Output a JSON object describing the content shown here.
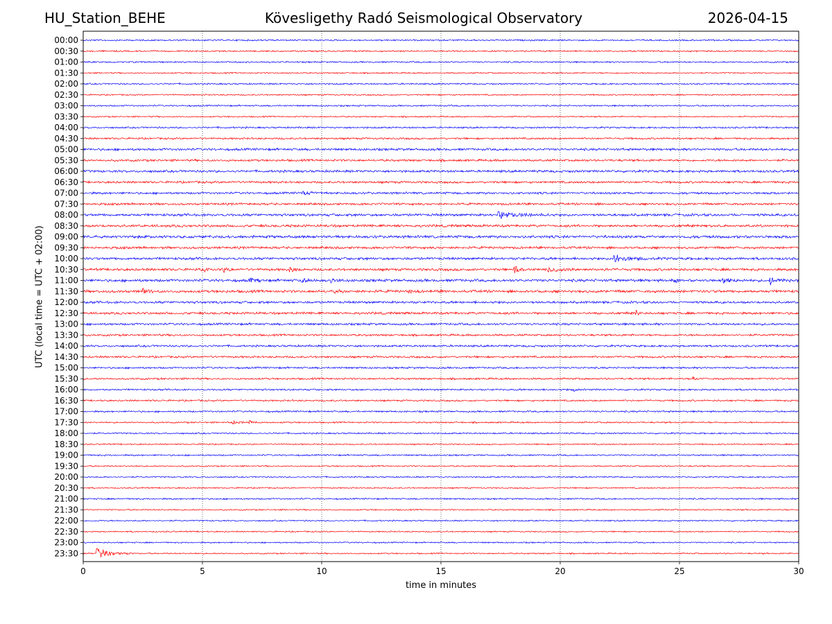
{
  "header": {
    "station": "HU_Station_BEHE",
    "observatory": "Kövesligethy Radó Seismological Observatory",
    "date": "2026-04-15"
  },
  "chart_data": {
    "type": "line",
    "title": "Kövesligethy Radó Seismological Observatory",
    "xlabel": "time in minutes",
    "ylabel": "UTC (local time = UTC + 02:00)",
    "xlim": [
      0,
      30
    ],
    "x_ticks": [
      "0",
      "5",
      "10",
      "15",
      "20",
      "25",
      "30"
    ],
    "grid_x": [
      5,
      10,
      15,
      20,
      25
    ],
    "row_labels": [
      "00:00",
      "00:30",
      "01:00",
      "01:30",
      "02:00",
      "02:30",
      "03:00",
      "03:30",
      "04:00",
      "04:30",
      "05:00",
      "05:30",
      "06:00",
      "06:30",
      "07:00",
      "07:30",
      "08:00",
      "08:30",
      "09:00",
      "09:30",
      "10:00",
      "10:30",
      "11:00",
      "11:30",
      "12:00",
      "12:30",
      "13:00",
      "13:30",
      "14:00",
      "14:30",
      "15:00",
      "15:30",
      "16:00",
      "16:30",
      "17:00",
      "17:30",
      "18:00",
      "18:30",
      "19:00",
      "19:30",
      "20:00",
      "20:30",
      "21:00",
      "21:30",
      "22:00",
      "22:30",
      "23:00",
      "23:30"
    ],
    "series_colors": [
      "#0000ff",
      "#ff0000"
    ],
    "noise_levels": [
      0.9,
      0.9,
      0.9,
      0.8,
      0.9,
      0.8,
      0.9,
      0.8,
      1.0,
      1.1,
      1.4,
      1.3,
      1.4,
      1.3,
      1.3,
      1.3,
      1.5,
      1.5,
      1.6,
      1.4,
      1.5,
      1.5,
      1.6,
      1.6,
      1.4,
      1.4,
      1.3,
      1.2,
      1.2,
      1.2,
      1.1,
      1.1,
      1.0,
      1.0,
      1.0,
      0.9,
      0.9,
      0.8,
      0.9,
      0.8,
      0.8,
      0.8,
      0.9,
      0.8,
      0.8,
      0.8,
      0.8,
      0.8
    ],
    "events": [
      {
        "row": "07:00",
        "minute": 9.2,
        "amplitude": 3.0,
        "duration_min": 1.0
      },
      {
        "row": "08:00",
        "minute": 17.4,
        "amplitude": 5.5,
        "duration_min": 2.2
      },
      {
        "row": "10:00",
        "minute": 22.3,
        "amplitude": 7.0,
        "duration_min": 1.5
      },
      {
        "row": "10:30",
        "minute": 5.1,
        "amplitude": 4.0,
        "duration_min": 0.4
      },
      {
        "row": "10:30",
        "minute": 5.9,
        "amplitude": 3.5,
        "duration_min": 0.4
      },
      {
        "row": "10:30",
        "minute": 8.7,
        "amplitude": 3.5,
        "duration_min": 0.6
      },
      {
        "row": "10:30",
        "minute": 18.1,
        "amplitude": 5.0,
        "duration_min": 0.6
      },
      {
        "row": "10:30",
        "minute": 19.5,
        "amplitude": 4.0,
        "duration_min": 1.5
      },
      {
        "row": "10:30",
        "minute": 21.8,
        "amplitude": 3.0,
        "duration_min": 0.4
      },
      {
        "row": "11:00",
        "minute": 7.0,
        "amplitude": 3.0,
        "duration_min": 0.5
      },
      {
        "row": "11:00",
        "minute": 9.2,
        "amplitude": 3.0,
        "duration_min": 0.4
      },
      {
        "row": "11:00",
        "minute": 10.4,
        "amplitude": 3.0,
        "duration_min": 0.6
      },
      {
        "row": "11:00",
        "minute": 24.8,
        "amplitude": 3.5,
        "duration_min": 0.5
      },
      {
        "row": "11:00",
        "minute": 26.8,
        "amplitude": 5.0,
        "duration_min": 1.0
      },
      {
        "row": "11:00",
        "minute": 28.8,
        "amplitude": 6.0,
        "duration_min": 1.0
      },
      {
        "row": "11:30",
        "minute": 2.5,
        "amplitude": 5.0,
        "duration_min": 0.5
      },
      {
        "row": "11:30",
        "minute": 10.5,
        "amplitude": 3.0,
        "duration_min": 0.5
      },
      {
        "row": "11:30",
        "minute": 13.7,
        "amplitude": 2.5,
        "duration_min": 0.4
      },
      {
        "row": "12:30",
        "minute": 23.2,
        "amplitude": 4.0,
        "duration_min": 0.3
      },
      {
        "row": "15:30",
        "minute": 25.6,
        "amplitude": 2.5,
        "duration_min": 0.3
      },
      {
        "row": "16:00",
        "minute": 20.5,
        "amplitude": 5.0,
        "duration_min": 0.3
      },
      {
        "row": "17:30",
        "minute": 6.3,
        "amplitude": 3.0,
        "duration_min": 0.3
      },
      {
        "row": "17:30",
        "minute": 7.0,
        "amplitude": 2.5,
        "duration_min": 0.3
      },
      {
        "row": "23:30",
        "minute": 0.6,
        "amplitude": 9.0,
        "duration_min": 1.4
      }
    ]
  }
}
